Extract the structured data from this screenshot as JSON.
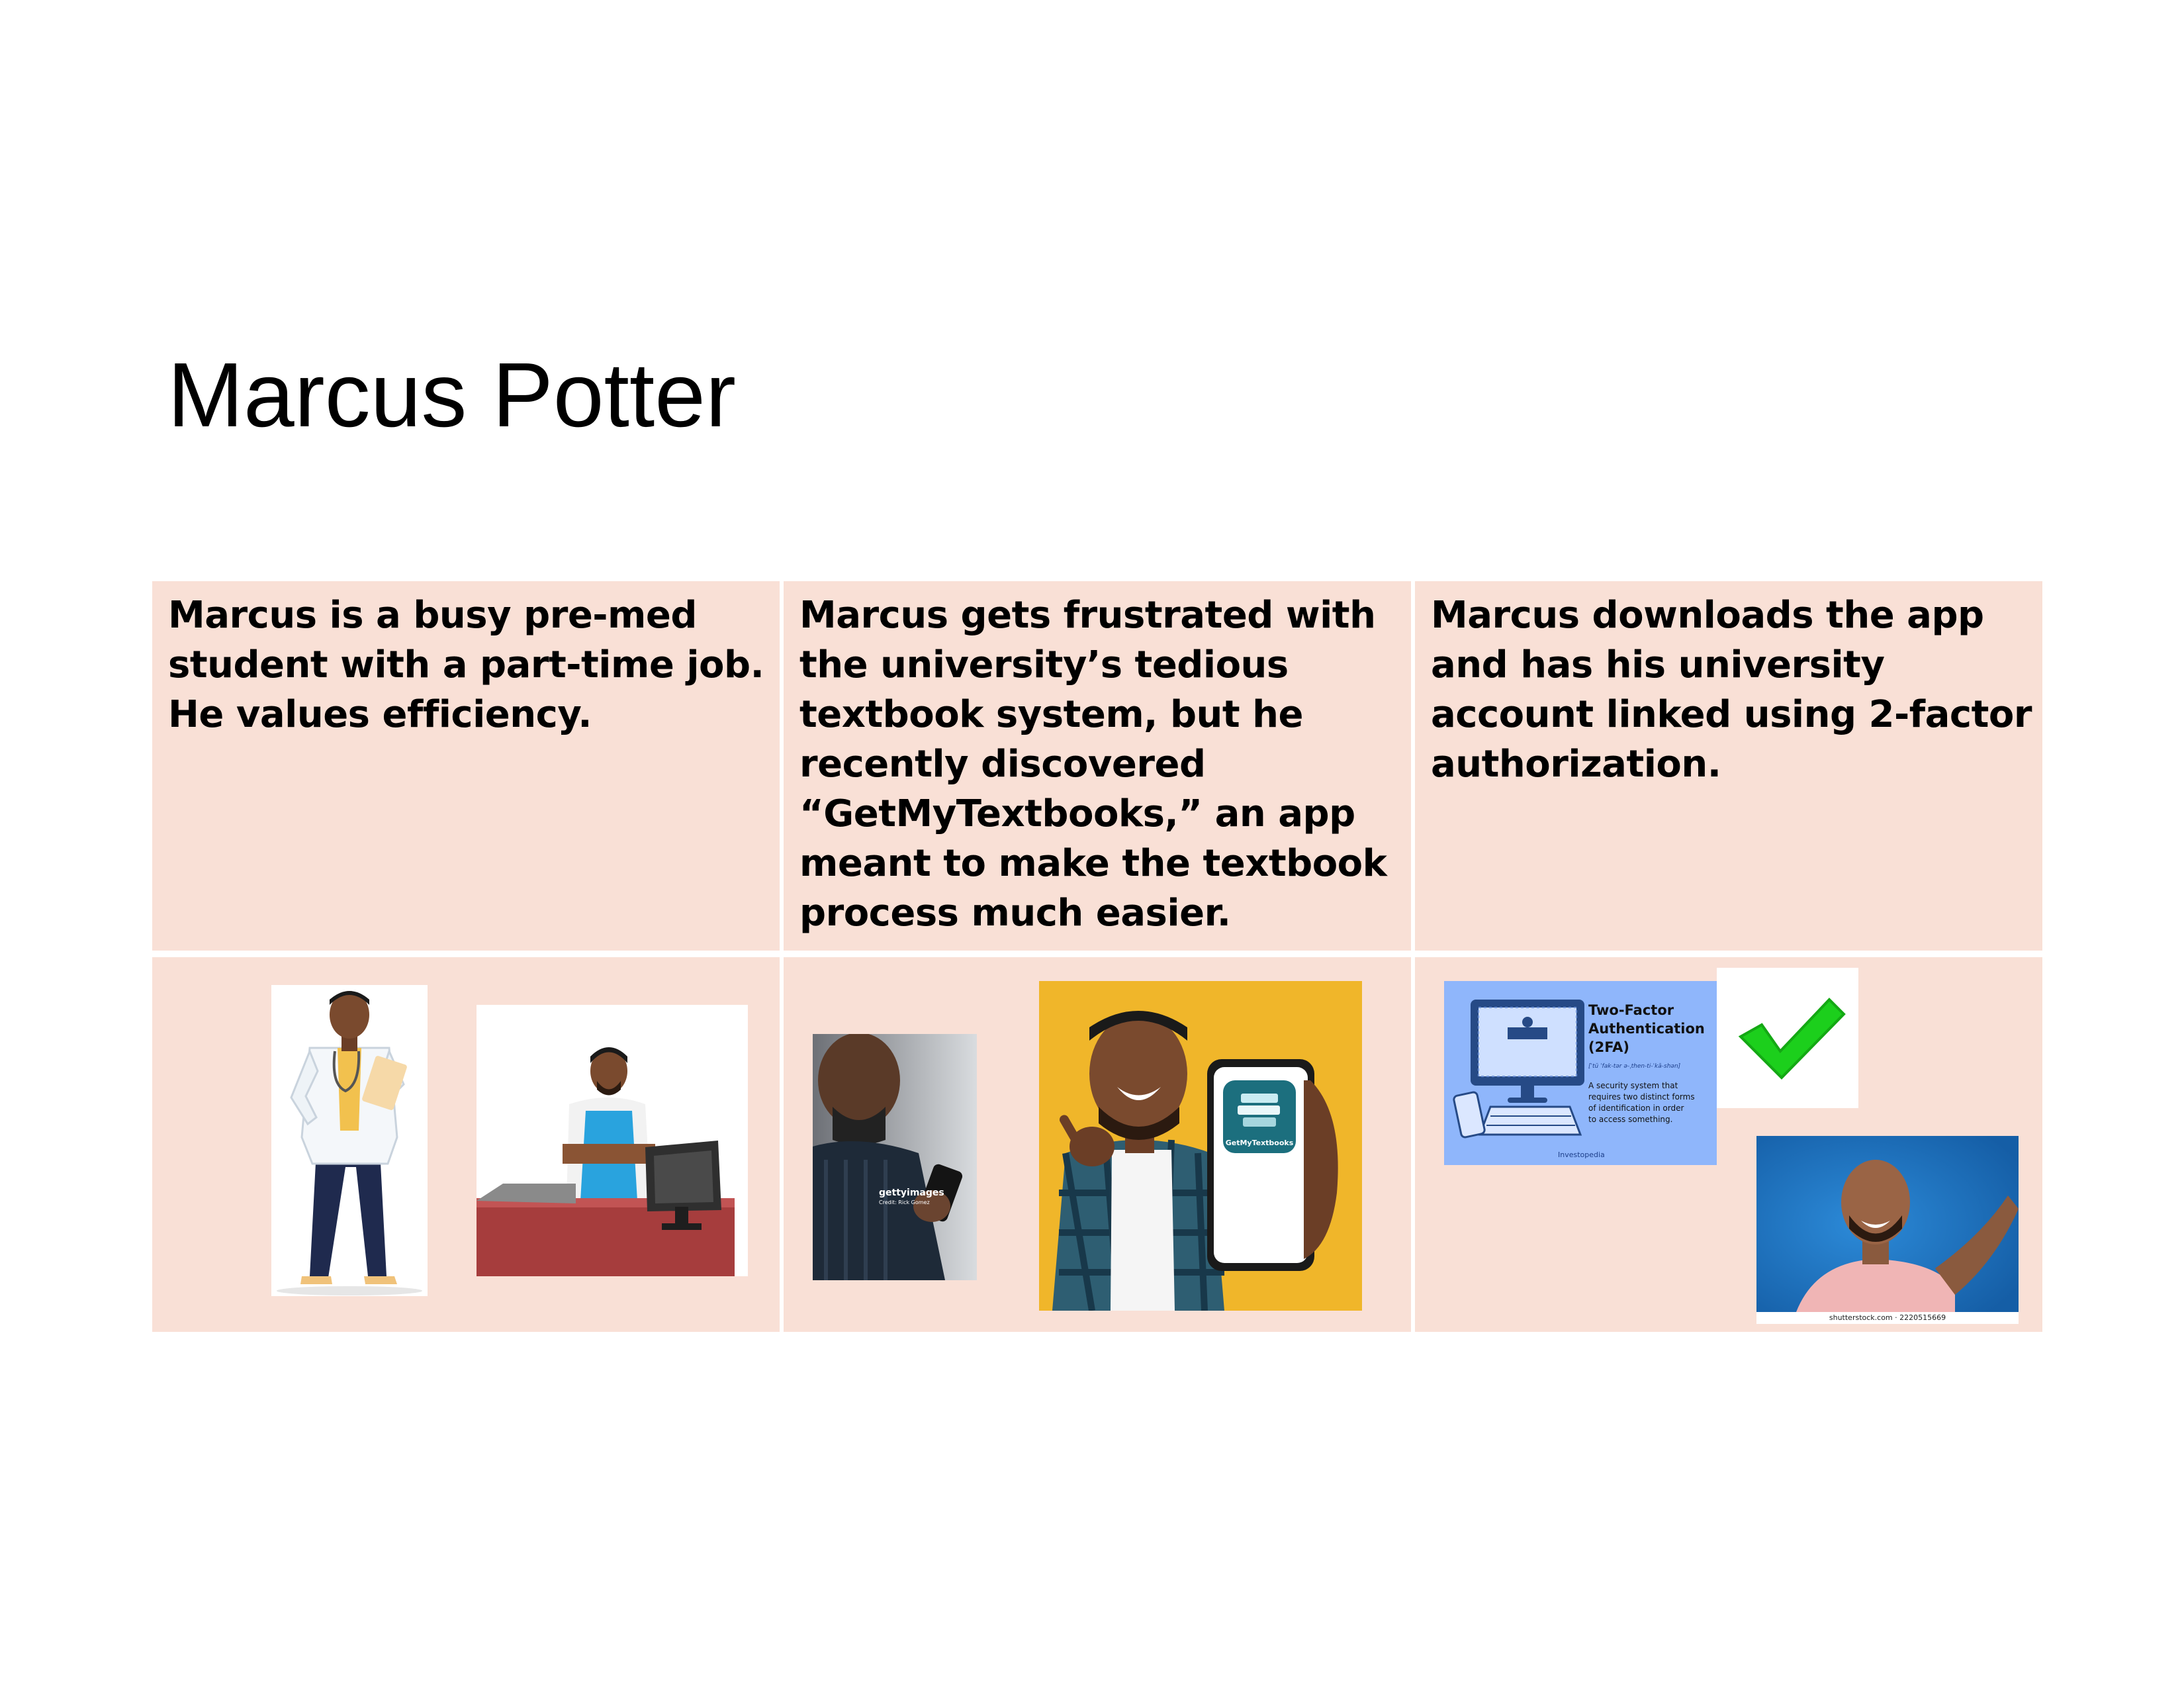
{
  "title": "Marcus Potter",
  "storyboard": {
    "panels": [
      {
        "text": "Marcus is a busy pre-med student with a part-time job. He values efficiency."
      },
      {
        "text": "Marcus gets frustrated with the university’s tedious textbook system, but he recently discovered “GetMyTextbooks,” an app meant to make the textbook process much easier."
      },
      {
        "text": "Marcus downloads the app and has his university account linked using 2-factor authorization."
      }
    ]
  },
  "images": {
    "getty_watermark": "gettyimages",
    "getty_credit": "Credit: Rick Gomez",
    "app_logo_label": "GetMyTextbooks",
    "tfa_title_1": "Two-Factor",
    "tfa_title_2": "Authentication",
    "tfa_title_3": "(2FA)",
    "tfa_pronunciation": "[ˈtü ˈfak-tər ə-ˌthen-ti-ˈkā-shən]",
    "tfa_def_1": "A security system that",
    "tfa_def_2": "requires two distinct forms",
    "tfa_def_3": "of identification in order",
    "tfa_def_4": "to access something.",
    "tfa_brand": "Investopedia",
    "shutterstock_credit": "shutterstock.com · 2220515669"
  }
}
